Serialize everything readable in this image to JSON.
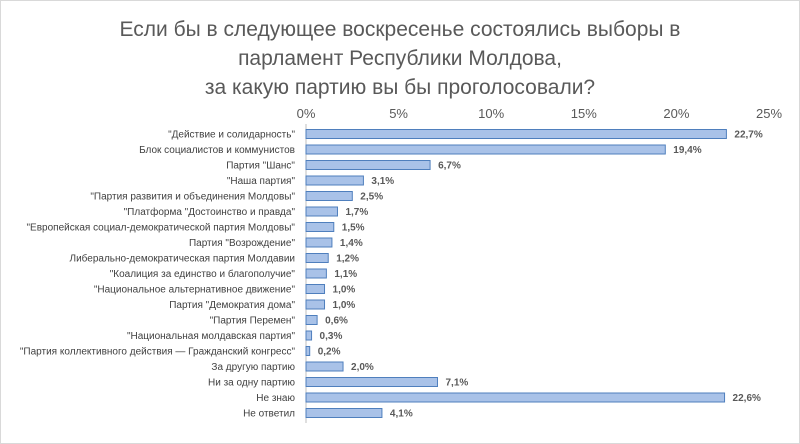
{
  "chart_data": {
    "type": "bar",
    "orientation": "horizontal",
    "title": "Если бы в следующее воскресенье состоялись выборы в\nпарламент Республики Молдова,\nза какую партию вы бы проголосовали?",
    "xaxis_position": "top",
    "xlim": [
      0,
      25
    ],
    "xticks": [
      "0%",
      "5%",
      "10%",
      "15%",
      "20%",
      "25%"
    ],
    "grid": false,
    "colors": {
      "bar_fill": "#a9c2e8",
      "bar_stroke": "#4f7fbd"
    },
    "categories": [
      "\"Действие и солидарность\"",
      "Блок социалистов и коммунистов",
      "Партия \"Шанс\"",
      "\"Наша партия\"",
      "\"Партия развития и объединения Молдовы\"",
      "\"Платформа \"Достоинство и правда\"",
      "\"Европейская социал-демократической партия Молдовы\"",
      "Партия \"Возрождение\"",
      "Либерально-демократическая партия Молдавии",
      "\"Коалиция за единство и благополучие\"",
      "\"Национальное альтернативное движение\"",
      "Партия \"Демократия дома\"",
      "\"Партия Перемен\"",
      "\"Национальная молдавская партия\"",
      "\"Партия коллективного действия — Гражданский конгресс\"",
      "За другую партию",
      "Ни за одну партию",
      "Не знаю",
      "Не ответил"
    ],
    "values": [
      22.7,
      19.4,
      6.7,
      3.1,
      2.5,
      1.7,
      1.5,
      1.4,
      1.2,
      1.1,
      1.0,
      1.0,
      0.6,
      0.3,
      0.2,
      2.0,
      7.1,
      22.6,
      4.1
    ],
    "labels": [
      "22,7%",
      "19,4%",
      "6,7%",
      "3,1%",
      "2,5%",
      "1,7%",
      "1,5%",
      "1,4%",
      "1,2%",
      "1,1%",
      "1,0%",
      "1,0%",
      "0,6%",
      "0,3%",
      "0,2%",
      "2,0%",
      "7,1%",
      "22,6%",
      "4,1%"
    ]
  }
}
